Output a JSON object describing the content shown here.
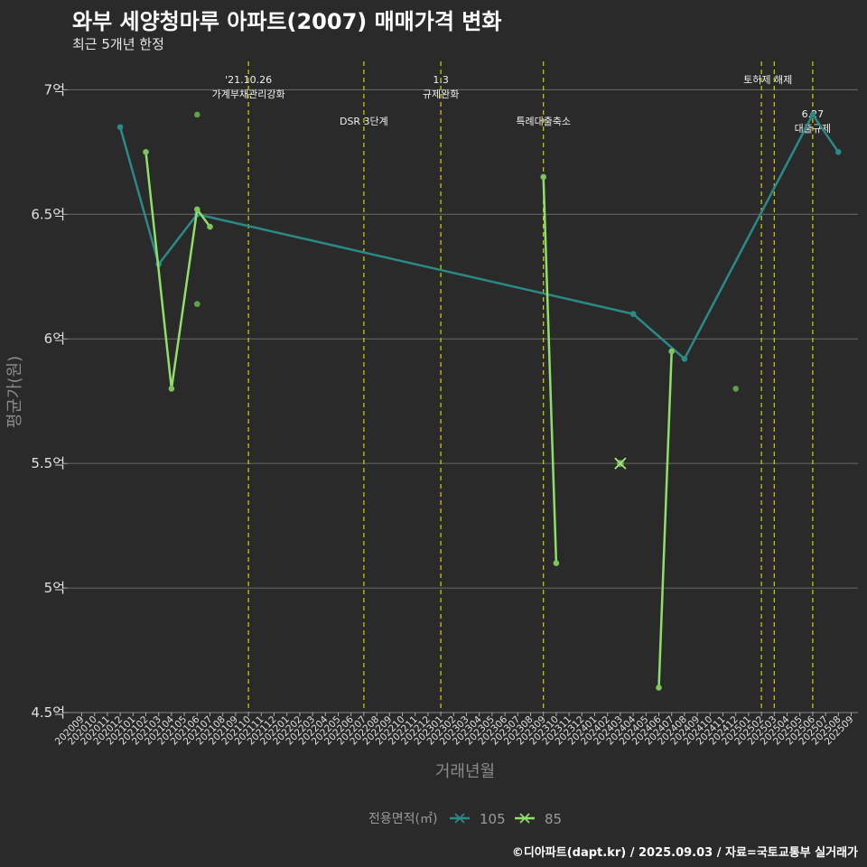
{
  "header": {
    "title": "와부 세양청마루 아파트(2007) 매매가격 변화",
    "subtitle": "최근 5개년 한정"
  },
  "footer": {
    "caption": "©디아파트(dapt.kr) / 2025.09.03 / 자료=국토교통부 실거래가"
  },
  "colors": {
    "background": "#2b2a2b",
    "grid": "#6a6a6a",
    "event_line": "#d4d400",
    "series_105": "#2a8a86",
    "series_85": "#8fe06a"
  },
  "chart_data": {
    "type": "line",
    "xlabel": "거래년월",
    "ylabel": "평균가(원)",
    "ylim": [
      4.5,
      7.15
    ],
    "y_ticks": [
      {
        "value": 4.5,
        "label": "4.5억"
      },
      {
        "value": 5,
        "label": "5억"
      },
      {
        "value": 5.5,
        "label": "5.5억"
      },
      {
        "value": 6,
        "label": "6억"
      },
      {
        "value": 6.5,
        "label": "6.5억"
      },
      {
        "value": 7,
        "label": "7억"
      }
    ],
    "categories": [
      "202009",
      "202010",
      "202011",
      "202012",
      "202101",
      "202102",
      "202103",
      "202104",
      "202105",
      "202106",
      "202107",
      "202108",
      "202109",
      "202110",
      "202111",
      "202112",
      "202201",
      "202202",
      "202203",
      "202204",
      "202205",
      "202206",
      "202207",
      "202208",
      "202209",
      "202210",
      "202211",
      "202212",
      "202301",
      "202302",
      "202303",
      "202304",
      "202305",
      "202306",
      "202307",
      "202308",
      "202309",
      "202310",
      "202311",
      "202312",
      "202401",
      "202402",
      "202403",
      "202404",
      "202405",
      "202406",
      "202407",
      "202408",
      "202409",
      "202410",
      "202411",
      "202412",
      "202501",
      "202502",
      "202503",
      "202504",
      "202505",
      "202506",
      "202507",
      "202508",
      "202509"
    ],
    "legend_title": "전용면적(㎡)",
    "series": [
      {
        "name": "105",
        "color": "#2a8a86",
        "line": [
          {
            "x": "202012",
            "y": 6.85
          },
          {
            "x": "202103",
            "y": 6.3
          },
          {
            "x": "202106",
            "y": 6.5
          },
          {
            "x": "202404",
            "y": 6.1
          },
          {
            "x": "202408",
            "y": 5.92
          },
          {
            "x": "202506",
            "y": 6.9
          },
          {
            "x": "202508",
            "y": 6.75
          }
        ],
        "extra_points": []
      },
      {
        "name": "85",
        "color": "#8fe06a",
        "line": [
          {
            "x": "202102",
            "y": 6.75
          },
          {
            "x": "202104",
            "y": 5.8
          },
          {
            "x": "202106",
            "y": 6.52
          },
          {
            "x": "202107",
            "y": 6.45
          },
          {
            "x": "202309",
            "y": 6.65
          },
          {
            "x": "202310",
            "y": 5.1
          },
          {
            "x": "202406",
            "y": 4.6
          },
          {
            "x": "202407",
            "y": 5.95
          }
        ],
        "segments": [
          [
            0,
            1,
            2,
            3
          ],
          [
            4,
            5
          ],
          [
            6,
            7
          ]
        ],
        "extra_points": [
          {
            "x": "202106",
            "y": 6.9
          },
          {
            "x": "202106",
            "y": 6.14
          },
          {
            "x": "202412",
            "y": 5.8
          }
        ],
        "cross_point": {
          "x": "202403",
          "y": 5.5
        }
      }
    ],
    "events": [
      {
        "x": "202110",
        "lines": [
          "'21.10.26",
          "가계부채관리강화"
        ],
        "row": 0
      },
      {
        "x": "202207",
        "lines": [
          "DSR 3단계"
        ],
        "row": 1
      },
      {
        "x": "202301",
        "lines": [
          "1.3",
          "규제완화"
        ],
        "row": 0
      },
      {
        "x": "202309",
        "lines": [
          "특례대출축소"
        ],
        "row": 1
      },
      {
        "x": "202502",
        "lines": [
          "토허제 해제"
        ],
        "row": 0,
        "span_to": "202503"
      },
      {
        "x": "202503",
        "lines": [],
        "row": 0
      },
      {
        "x": "202506",
        "lines": [
          "6.27",
          "대출규제"
        ],
        "row": 2
      }
    ]
  }
}
